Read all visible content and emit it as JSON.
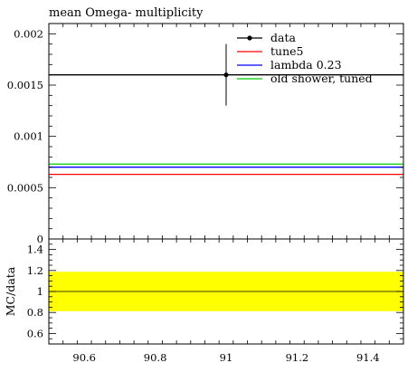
{
  "chart_data": {
    "type": "line",
    "title": "mean Omega- multiplicity",
    "xlim": [
      90.5,
      91.5
    ],
    "xticks": [
      "90.6",
      "90.8",
      "91",
      "91.2",
      "91.4"
    ],
    "main": {
      "ylim": [
        0,
        0.0021
      ],
      "yticks": [
        "0",
        "0.0005",
        "0.001",
        "0.0015",
        "0.002"
      ],
      "data_point": {
        "name": "data",
        "x": 91,
        "y": 0.0016,
        "err_low": 0.0013,
        "err_high": 0.0019,
        "color": "#000000"
      },
      "series": [
        {
          "name": "tune5",
          "y": 0.00063,
          "color": "#ff0000"
        },
        {
          "name": "lambda 0.23",
          "y": 0.0007,
          "color": "#0000ff"
        },
        {
          "name": "old shower, tuned",
          "y": 0.00073,
          "color": "#00cc00"
        }
      ]
    },
    "ratio": {
      "ylabel": "MC/data",
      "ylim": [
        0.5,
        1.5
      ],
      "yticks": [
        "0.6",
        "0.8",
        "1",
        "1.2",
        "1.4"
      ],
      "band": [
        0.8125,
        1.1875
      ],
      "band_color": "#ffff00",
      "reference": 1
    }
  }
}
